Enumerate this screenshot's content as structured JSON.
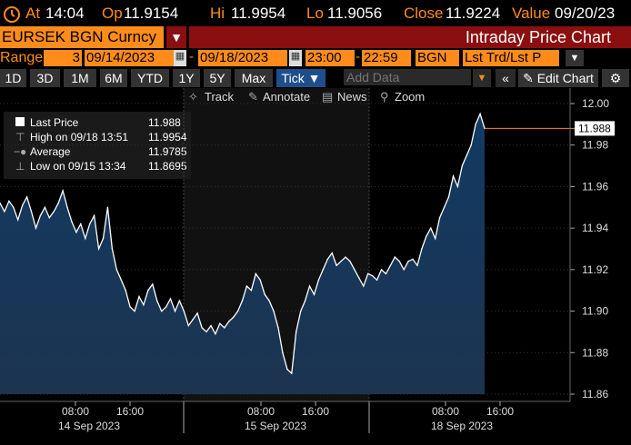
{
  "header": {
    "at_label": "At",
    "at_value": "14:04",
    "op_label": "Op",
    "op_value": "11.9154",
    "hi_label": "Hi",
    "hi_value": "11.9954",
    "lo_label": "Lo",
    "lo_value": "11.9056",
    "close_label": "Close",
    "close_value": "11.9224",
    "value_label": "Value",
    "value_value": "09/20/23"
  },
  "security": {
    "ticker": "EURSEK BGN Curncy",
    "title": "Intraday Price Chart"
  },
  "range": {
    "label": "Range",
    "period": "3",
    "start": "09/14/2023",
    "end": "09/18/2023",
    "time_start": "23:00",
    "time_end": "22:59",
    "source": "BGN",
    "mode": "Lst Trd/Lst P"
  },
  "toolbar": {
    "periods": [
      "1D",
      "3D",
      "1M",
      "6M",
      "YTD",
      "1Y",
      "5Y",
      "Max"
    ],
    "tick": "Tick",
    "add_data_placeholder": "Add Data",
    "edit_chart": "Edit Chart"
  },
  "chart_toolbar": {
    "track": "Track",
    "annotate": "Annotate",
    "news": "News",
    "zoom": "Zoom"
  },
  "legend": {
    "last_label": "Last Price",
    "last_value": "11.988",
    "high_label": "High on 09/18 13:51",
    "high_value": "11.9954",
    "avg_label": "Average",
    "avg_value": "11.9785",
    "low_label": "Low on 09/15 13:34",
    "low_value": "11.8695"
  },
  "chart_data": {
    "type": "area",
    "ylim": [
      11.86,
      12.0
    ],
    "y_ticks": [
      "12.00",
      "11.98",
      "11.96",
      "11.94",
      "11.92",
      "11.90",
      "11.88",
      "11.86"
    ],
    "last_price_label": "11.988",
    "x_time_labels": [
      "08:00",
      "16:00",
      "08:00",
      "16:00",
      "08:00",
      "16:00"
    ],
    "x_day_labels": [
      "14 Sep 2023",
      "15 Sep 2023",
      "18 Sep 2023"
    ],
    "series": [
      {
        "values": [
          11.952,
          11.948,
          11.953,
          11.95,
          11.944,
          11.951,
          11.955,
          11.948,
          11.94,
          11.946,
          11.95,
          11.945,
          11.948,
          11.952,
          11.958,
          11.95,
          11.943,
          11.938,
          11.942,
          11.935,
          11.942,
          11.946,
          11.93,
          11.935,
          11.95,
          11.93,
          11.92,
          11.915,
          11.91,
          11.902,
          11.9,
          11.907,
          11.903,
          11.91,
          11.913,
          11.905,
          11.9,
          11.902,
          11.906,
          11.9,
          11.905,
          11.9,
          11.893,
          11.896,
          11.899,
          11.892,
          11.89,
          11.893,
          11.889,
          11.894,
          11.892,
          11.895,
          11.897,
          11.9,
          11.905,
          11.912,
          11.91,
          11.918,
          11.915,
          11.908,
          11.905,
          11.9,
          11.892,
          11.88,
          11.872,
          11.87,
          11.89,
          11.9,
          11.905,
          11.912,
          11.908,
          11.915,
          11.92,
          11.925,
          11.928,
          11.922,
          11.924,
          11.926,
          11.924,
          11.92,
          11.916,
          11.912,
          11.918,
          11.917,
          11.915,
          11.92,
          11.918,
          11.922,
          11.926,
          11.924,
          11.92,
          11.924,
          11.925,
          11.922,
          11.93,
          11.936,
          11.94,
          11.935,
          11.945,
          11.95,
          11.955,
          11.965,
          11.96,
          11.97,
          11.975,
          11.98,
          11.99,
          11.995,
          11.988
        ]
      }
    ]
  }
}
